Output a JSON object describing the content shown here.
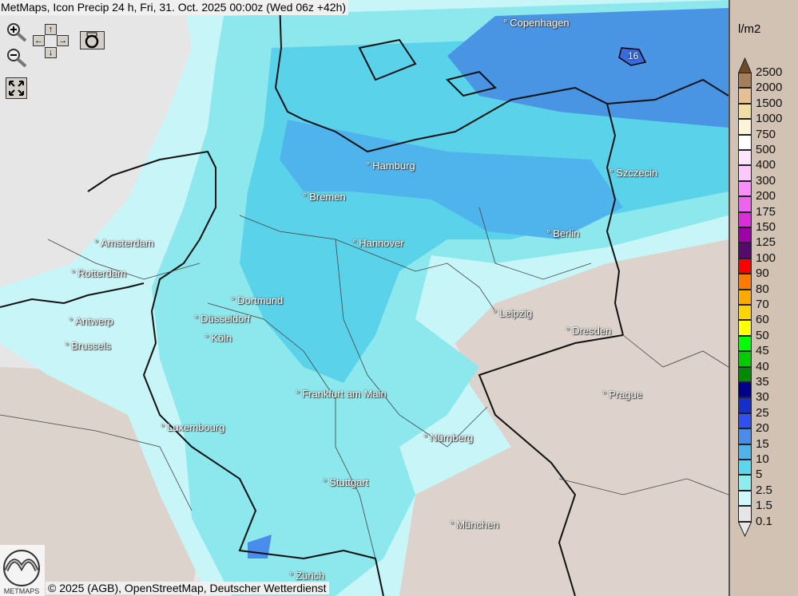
{
  "title": "MetMaps, Icon Precip 24 h, Fri, 31. Oct. 2025 00:00z (Wed 06z +42h)",
  "controls": {
    "zoom_in": "zoom-in-icon",
    "zoom_out": "zoom-out-icon",
    "pan_up": "↑",
    "pan_left": "←",
    "pan_right": "→",
    "pan_down": "↓",
    "camera": "camera-icon",
    "fullscreen": "fullscreen-icon"
  },
  "cities": [
    {
      "name": "Copenhagen"
    },
    {
      "name": "Hamburg"
    },
    {
      "name": "Szczecin"
    },
    {
      "name": "Bremen"
    },
    {
      "name": "Amsterdam"
    },
    {
      "name": "Hannover"
    },
    {
      "name": "Berlin"
    },
    {
      "name": "Rotterdam"
    },
    {
      "name": "Dortmund"
    },
    {
      "name": "Leipzig"
    },
    {
      "name": "Antwerp"
    },
    {
      "name": "Düsseldorf"
    },
    {
      "name": "Dresden"
    },
    {
      "name": "Brussels"
    },
    {
      "name": "Köln"
    },
    {
      "name": "Frankfurt am Main"
    },
    {
      "name": "Prague"
    },
    {
      "name": "Luxembourg"
    },
    {
      "name": "Nürnberg"
    },
    {
      "name": "Stuttgart"
    },
    {
      "name": "München"
    },
    {
      "name": "Zürich"
    }
  ],
  "map_marker": "16",
  "credit": "© 2025 (AGB), OpenStreetMap, Deutscher Wetterdienst",
  "logo_text": "METMAPS",
  "legend": {
    "unit": "l/m2",
    "labels": [
      "2500",
      "2000",
      "1500",
      "1000",
      "750",
      "500",
      "400",
      "300",
      "200",
      "175",
      "150",
      "125",
      "100",
      "90",
      "80",
      "70",
      "60",
      "50",
      "45",
      "40",
      "35",
      "30",
      "25",
      "20",
      "15",
      "10",
      "5",
      "2.5",
      "1.5",
      "0.1"
    ],
    "colors": [
      "#a57f5c",
      "#e6bf94",
      "#f1dea0",
      "#fbf4d6",
      "#ffffff",
      "#fde6fd",
      "#fdc8fd",
      "#fb8cfb",
      "#ef62ef",
      "#dc2cdc",
      "#a000a8",
      "#560a6e",
      "#ff0000",
      "#ff7a00",
      "#ffaa00",
      "#ffd400",
      "#ffff00",
      "#00ff00",
      "#00cc00",
      "#008c00",
      "#00008c",
      "#1430c8",
      "#3050f5",
      "#4a8cec",
      "#50b4ec",
      "#5ad6ee",
      "#8ceeec",
      "#d0f8fa",
      "#e6e6e6"
    ],
    "top_arrow_color": "#6e4a28",
    "bottom_arrow_color": "#e6e6e6"
  }
}
